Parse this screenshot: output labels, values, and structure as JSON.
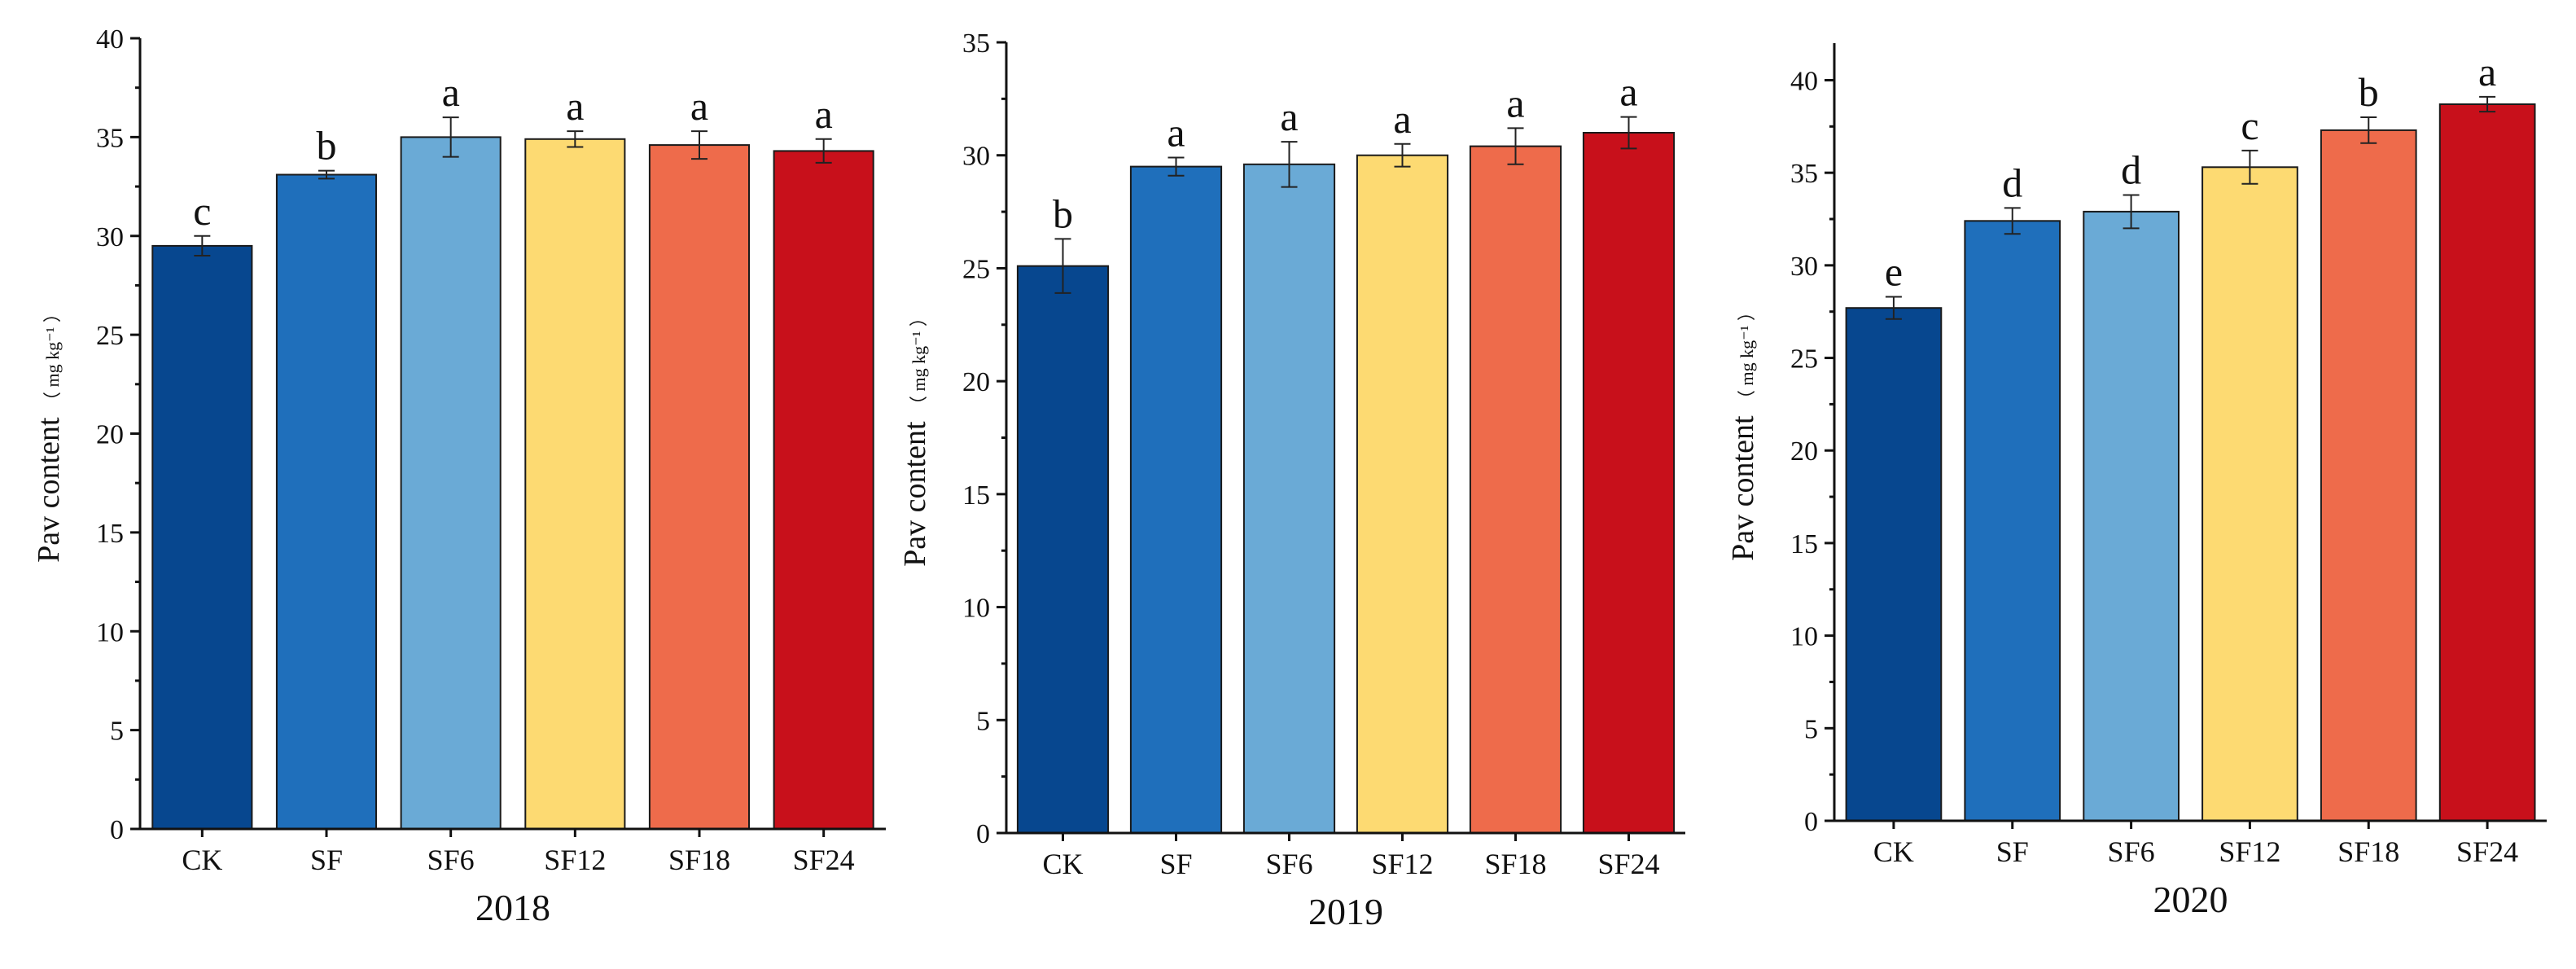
{
  "chart_data": [
    {
      "type": "bar",
      "title": "2018",
      "xlabel": "2018",
      "ylabel": "Pav content",
      "ylabel_unit": "（ mg kg⁻¹ ）",
      "ylim": [
        0,
        40
      ],
      "yticks": [
        0,
        5,
        10,
        15,
        20,
        25,
        30,
        35,
        40
      ],
      "categories": [
        "CK",
        "SF",
        "SF6",
        "SF12",
        "SF18",
        "SF24"
      ],
      "values": [
        29.5,
        33.1,
        35.0,
        34.9,
        34.6,
        34.3
      ],
      "errors": [
        0.5,
        0.2,
        1.0,
        0.4,
        0.7,
        0.6
      ],
      "letters": [
        "c",
        "b",
        "a",
        "a",
        "a",
        "a"
      ],
      "colors": [
        "#07478f",
        "#1f6fbb",
        "#6aaad6",
        "#fdda72",
        "#ee6b4b",
        "#c8101b"
      ]
    },
    {
      "type": "bar",
      "title": "2019",
      "xlabel": "2019",
      "ylabel": "Pav content",
      "ylabel_unit": "（ mg kg⁻¹ ）",
      "ylim": [
        0,
        35
      ],
      "yticks": [
        0,
        5,
        10,
        15,
        20,
        25,
        30,
        35
      ],
      "categories": [
        "CK",
        "SF",
        "SF6",
        "SF12",
        "SF18",
        "SF24"
      ],
      "values": [
        25.1,
        29.5,
        29.6,
        30.0,
        30.4,
        31.0
      ],
      "errors": [
        1.2,
        0.4,
        1.0,
        0.5,
        0.8,
        0.7
      ],
      "letters": [
        "b",
        "a",
        "a",
        "a",
        "a",
        "a"
      ],
      "colors": [
        "#07478f",
        "#1f6fbb",
        "#6aaad6",
        "#fdda72",
        "#ee6b4b",
        "#c8101b"
      ]
    },
    {
      "type": "bar",
      "title": "2020",
      "xlabel": "2020",
      "ylabel": "Pav content",
      "ylabel_unit": "（ mg kg⁻¹ ）",
      "ylim": [
        0,
        42
      ],
      "yticks": [
        0,
        5,
        10,
        15,
        20,
        25,
        30,
        35,
        40
      ],
      "categories": [
        "CK",
        "SF",
        "SF6",
        "SF12",
        "SF18",
        "SF24"
      ],
      "values": [
        27.7,
        32.4,
        32.9,
        35.3,
        37.3,
        38.7
      ],
      "errors": [
        0.6,
        0.7,
        0.9,
        0.9,
        0.7,
        0.4
      ],
      "letters": [
        "e",
        "d",
        "d",
        "c",
        "b",
        "a"
      ],
      "colors": [
        "#07478f",
        "#1f6fbb",
        "#6aaad6",
        "#fdda72",
        "#ee6b4b",
        "#c8101b"
      ]
    }
  ]
}
